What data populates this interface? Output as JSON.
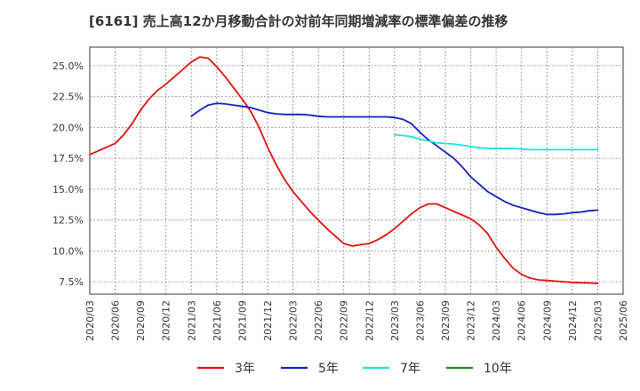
{
  "chart_data": {
    "type": "line",
    "title": "[6161]  売上高12か月移動合計の対前年同期増減率の標準偏差の推移",
    "x_ticks": [
      "2020/03",
      "2020/06",
      "2020/09",
      "2020/12",
      "2021/03",
      "2021/06",
      "2021/09",
      "2021/12",
      "2022/03",
      "2022/06",
      "2022/09",
      "2022/12",
      "2023/03",
      "2023/06",
      "2023/09",
      "2023/12",
      "2024/03",
      "2024/06",
      "2024/09",
      "2024/12",
      "2025/03",
      "2025/06"
    ],
    "y_ticks": [
      "7.5%",
      "10.0%",
      "12.5%",
      "15.0%",
      "17.5%",
      "20.0%",
      "22.5%",
      "25.0%"
    ],
    "y_tick_values": [
      7.5,
      10.0,
      12.5,
      15.0,
      17.5,
      20.0,
      22.5,
      25.0
    ],
    "ylim": [
      6.5,
      26.5
    ],
    "xlim": [
      "2020/03",
      "2025/06"
    ],
    "grid": true,
    "legend_position": "bottom",
    "series": [
      {
        "name": "3年",
        "color": "#dd1111",
        "points": [
          [
            "2020/03",
            17.8
          ],
          [
            "2020/04",
            18.1
          ],
          [
            "2020/05",
            18.4
          ],
          [
            "2020/06",
            18.7
          ],
          [
            "2020/07",
            19.4
          ],
          [
            "2020/08",
            20.3
          ],
          [
            "2020/09",
            21.4
          ],
          [
            "2020/10",
            22.3
          ],
          [
            "2020/11",
            23.0
          ],
          [
            "2020/12",
            23.5
          ],
          [
            "2021/01",
            24.1
          ],
          [
            "2021/02",
            24.7
          ],
          [
            "2021/03",
            25.3
          ],
          [
            "2021/04",
            25.7
          ],
          [
            "2021/05",
            25.6
          ],
          [
            "2021/06",
            24.9
          ],
          [
            "2021/07",
            24.1
          ],
          [
            "2021/08",
            23.2
          ],
          [
            "2021/09",
            22.3
          ],
          [
            "2021/10",
            21.3
          ],
          [
            "2021/11",
            20.0
          ],
          [
            "2021/12",
            18.4
          ],
          [
            "2022/01",
            17.0
          ],
          [
            "2022/02",
            15.8
          ],
          [
            "2022/03",
            14.8
          ],
          [
            "2022/04",
            14.0
          ],
          [
            "2022/05",
            13.2
          ],
          [
            "2022/06",
            12.5
          ],
          [
            "2022/07",
            11.8
          ],
          [
            "2022/08",
            11.2
          ],
          [
            "2022/09",
            10.6
          ],
          [
            "2022/10",
            10.4
          ],
          [
            "2022/11",
            10.5
          ],
          [
            "2022/12",
            10.6
          ],
          [
            "2023/01",
            10.9
          ],
          [
            "2023/02",
            11.3
          ],
          [
            "2023/03",
            11.8
          ],
          [
            "2023/04",
            12.4
          ],
          [
            "2023/05",
            13.0
          ],
          [
            "2023/06",
            13.5
          ],
          [
            "2023/07",
            13.8
          ],
          [
            "2023/08",
            13.8
          ],
          [
            "2023/09",
            13.5
          ],
          [
            "2023/10",
            13.2
          ],
          [
            "2023/11",
            12.9
          ],
          [
            "2023/12",
            12.6
          ],
          [
            "2024/01",
            12.1
          ],
          [
            "2024/02",
            11.4
          ],
          [
            "2024/03",
            10.3
          ],
          [
            "2024/04",
            9.4
          ],
          [
            "2024/05",
            8.6
          ],
          [
            "2024/06",
            8.1
          ],
          [
            "2024/07",
            7.8
          ],
          [
            "2024/08",
            7.65
          ],
          [
            "2024/09",
            7.6
          ],
          [
            "2024/10",
            7.55
          ],
          [
            "2024/11",
            7.5
          ],
          [
            "2024/12",
            7.45
          ],
          [
            "2025/01",
            7.42
          ],
          [
            "2025/02",
            7.4
          ],
          [
            "2025/03",
            7.38
          ]
        ]
      },
      {
        "name": "5年",
        "color": "#1122bb",
        "points": [
          [
            "2021/03",
            20.9
          ],
          [
            "2021/04",
            21.4
          ],
          [
            "2021/05",
            21.8
          ],
          [
            "2021/06",
            21.95
          ],
          [
            "2021/07",
            21.9
          ],
          [
            "2021/08",
            21.8
          ],
          [
            "2021/09",
            21.7
          ],
          [
            "2021/10",
            21.6
          ],
          [
            "2021/11",
            21.4
          ],
          [
            "2021/12",
            21.2
          ],
          [
            "2022/01",
            21.1
          ],
          [
            "2022/02",
            21.05
          ],
          [
            "2022/03",
            21.05
          ],
          [
            "2022/04",
            21.05
          ],
          [
            "2022/05",
            21.0
          ],
          [
            "2022/06",
            20.9
          ],
          [
            "2022/07",
            20.85
          ],
          [
            "2022/08",
            20.85
          ],
          [
            "2022/09",
            20.85
          ],
          [
            "2022/10",
            20.85
          ],
          [
            "2022/11",
            20.85
          ],
          [
            "2022/12",
            20.85
          ],
          [
            "2023/01",
            20.85
          ],
          [
            "2023/02",
            20.85
          ],
          [
            "2023/03",
            20.8
          ],
          [
            "2023/04",
            20.65
          ],
          [
            "2023/05",
            20.3
          ],
          [
            "2023/06",
            19.6
          ],
          [
            "2023/07",
            19.0
          ],
          [
            "2023/08",
            18.5
          ],
          [
            "2023/09",
            18.0
          ],
          [
            "2023/10",
            17.5
          ],
          [
            "2023/11",
            16.8
          ],
          [
            "2023/12",
            16.0
          ],
          [
            "2024/01",
            15.4
          ],
          [
            "2024/02",
            14.8
          ],
          [
            "2024/03",
            14.4
          ],
          [
            "2024/04",
            14.0
          ],
          [
            "2024/05",
            13.7
          ],
          [
            "2024/06",
            13.5
          ],
          [
            "2024/07",
            13.3
          ],
          [
            "2024/08",
            13.1
          ],
          [
            "2024/09",
            12.95
          ],
          [
            "2024/10",
            12.95
          ],
          [
            "2024/11",
            13.0
          ],
          [
            "2024/12",
            13.1
          ],
          [
            "2025/01",
            13.15
          ],
          [
            "2025/02",
            13.25
          ],
          [
            "2025/03",
            13.3
          ]
        ]
      },
      {
        "name": "7年",
        "color": "#22dddd",
        "points": [
          [
            "2023/03",
            19.4
          ],
          [
            "2023/04",
            19.35
          ],
          [
            "2023/05",
            19.25
          ],
          [
            "2023/06",
            19.05
          ],
          [
            "2023/07",
            18.9
          ],
          [
            "2023/08",
            18.75
          ],
          [
            "2023/09",
            18.7
          ],
          [
            "2023/10",
            18.65
          ],
          [
            "2023/11",
            18.55
          ],
          [
            "2023/12",
            18.45
          ],
          [
            "2024/01",
            18.35
          ],
          [
            "2024/02",
            18.3
          ],
          [
            "2024/03",
            18.3
          ],
          [
            "2024/04",
            18.3
          ],
          [
            "2024/05",
            18.3
          ],
          [
            "2024/06",
            18.25
          ],
          [
            "2024/07",
            18.2
          ],
          [
            "2024/08",
            18.2
          ],
          [
            "2024/09",
            18.2
          ],
          [
            "2024/10",
            18.2
          ],
          [
            "2024/11",
            18.2
          ],
          [
            "2024/12",
            18.2
          ],
          [
            "2025/01",
            18.2
          ],
          [
            "2025/02",
            18.2
          ],
          [
            "2025/03",
            18.2
          ]
        ]
      },
      {
        "name": "10年",
        "color": "#228822",
        "points": []
      }
    ]
  }
}
